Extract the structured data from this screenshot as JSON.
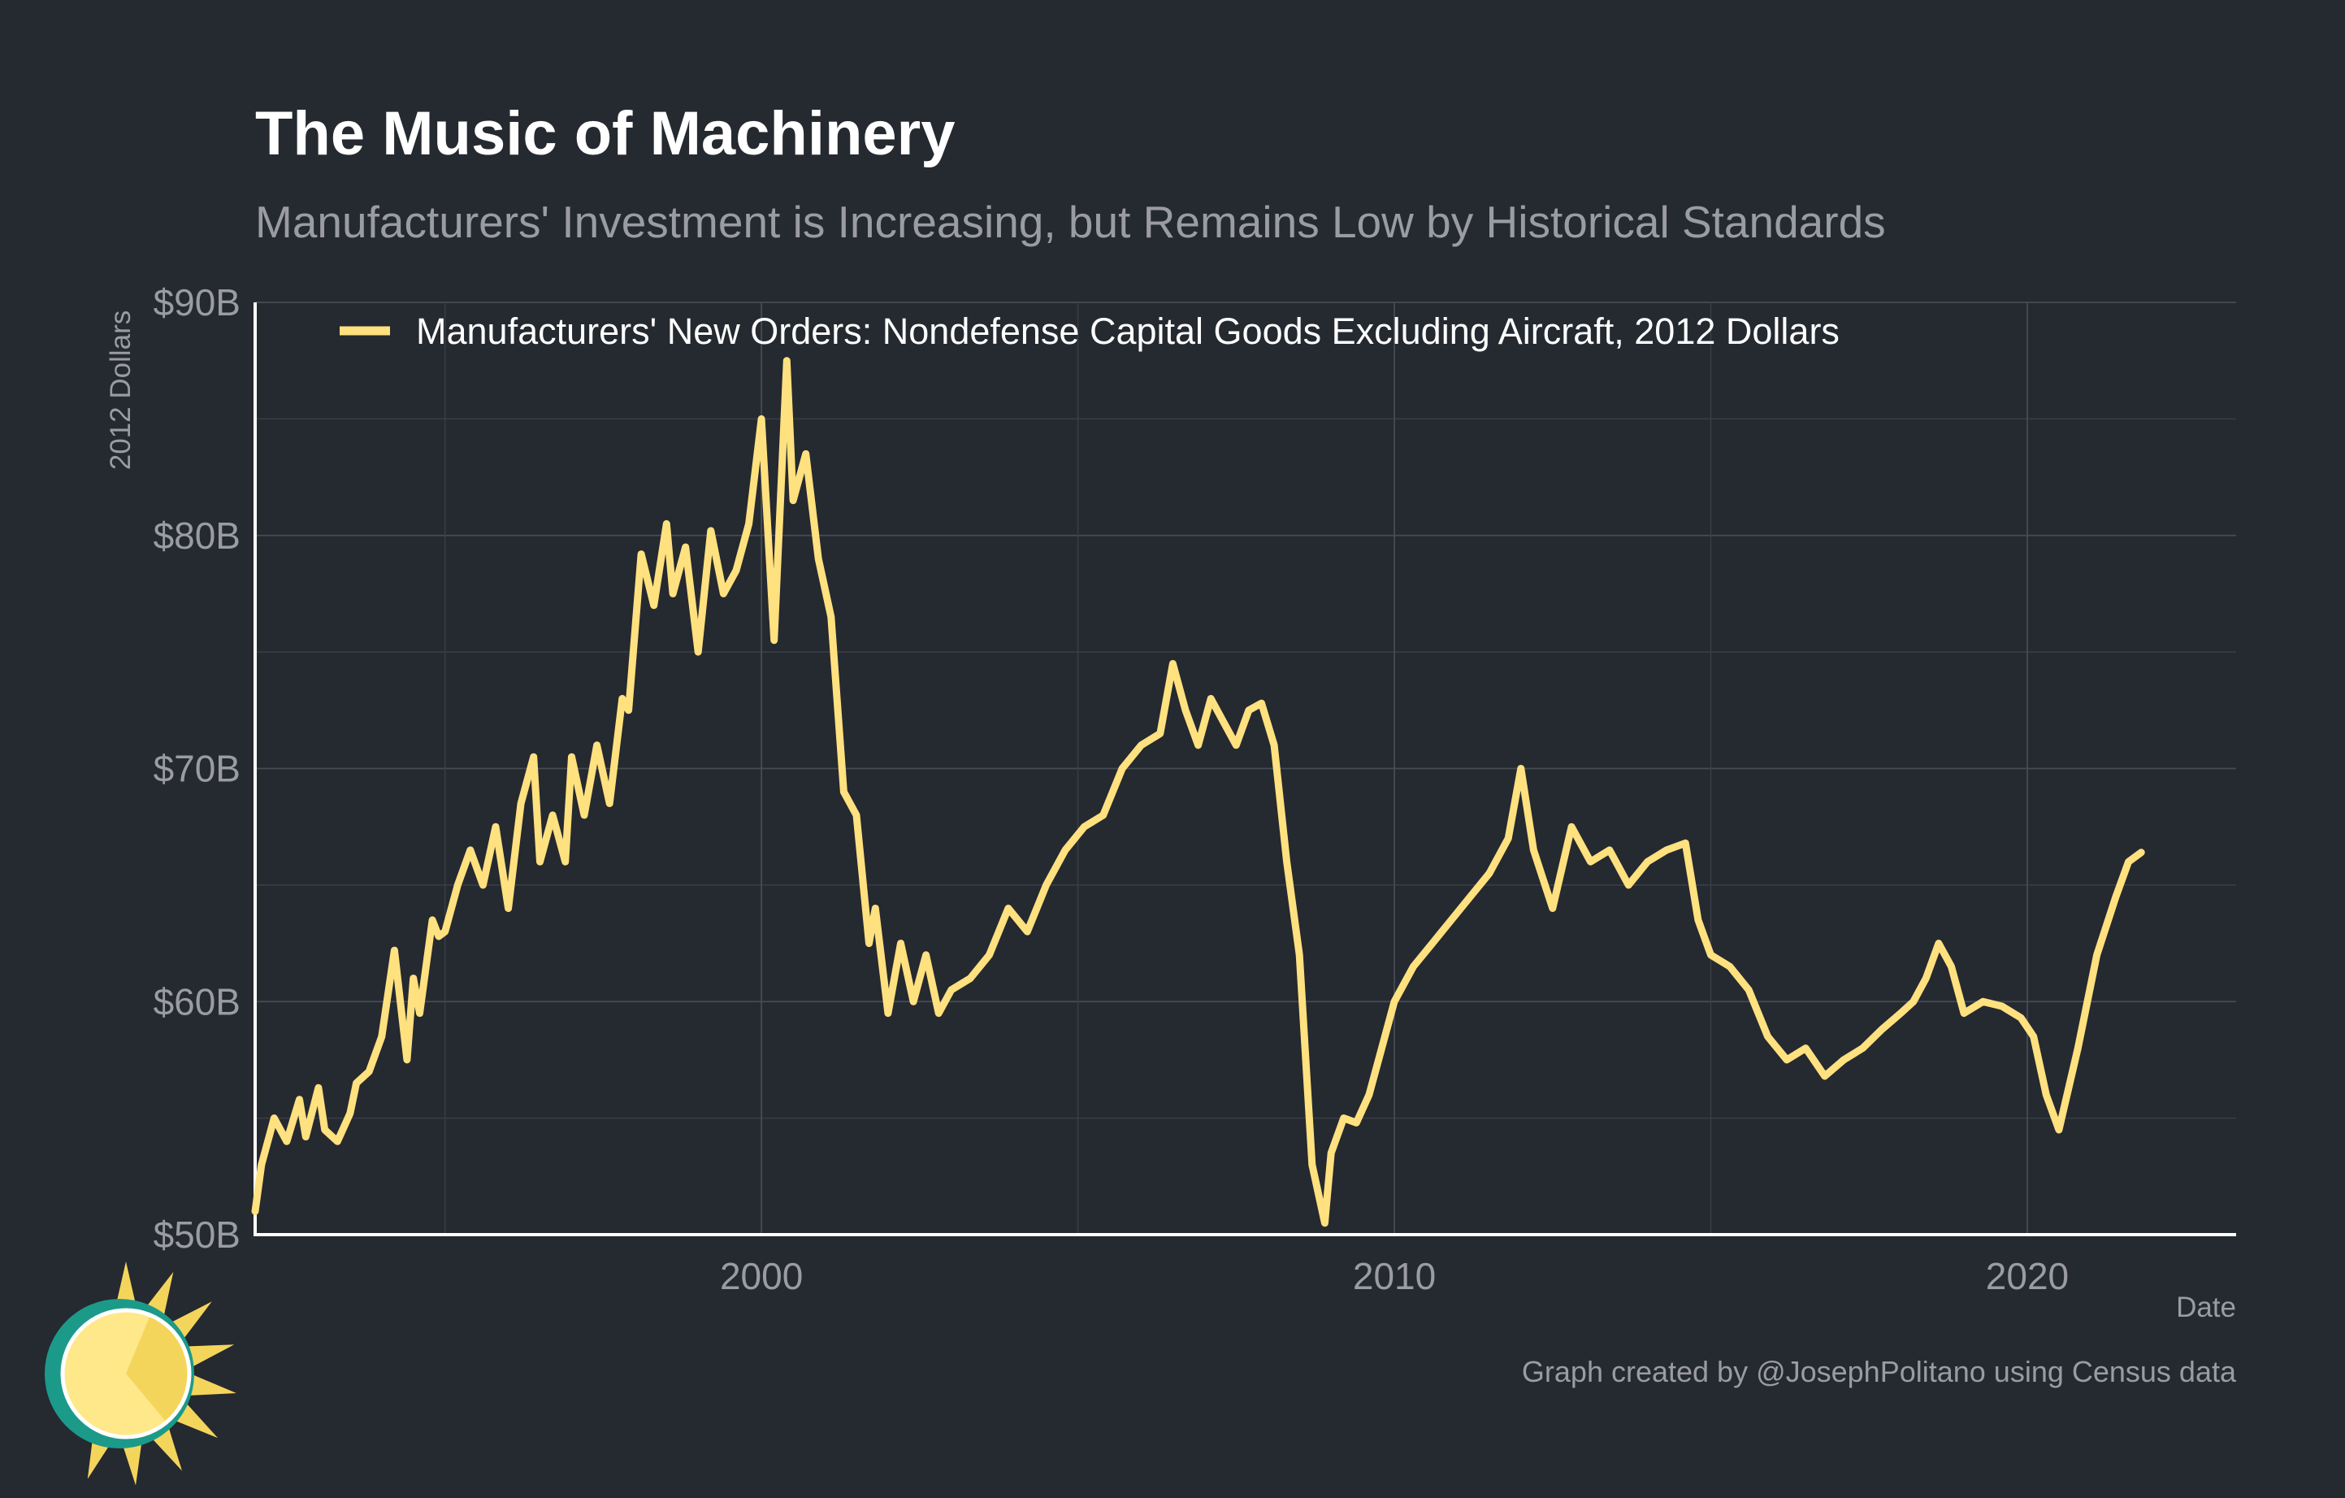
{
  "colors": {
    "background": "#252930",
    "series": "#FFE17F",
    "logo_ring": "#1B9A8A",
    "logo_face": "#FFE88A",
    "logo_rays": "#F4D55B"
  },
  "logo": {
    "icon": "sun-icon"
  },
  "chart_data": {
    "type": "line",
    "title": "The Music of Machinery",
    "subtitle": "Manufacturers' Investment is Increasing, but Remains Low by Historical Standards",
    "xlabel": "Date",
    "ylabel": "2012 Dollars",
    "xlim": [
      1992.0,
      2023.3
    ],
    "ylim": [
      50,
      90
    ],
    "x_ticks": [
      2000,
      2010,
      2020
    ],
    "y_ticks": [
      50,
      60,
      70,
      80,
      90
    ],
    "y_tick_labels": [
      "$50B",
      "$60B",
      "$70B",
      "$80B",
      "$90B"
    ],
    "grid": true,
    "legend_position": "top-left",
    "caption": "Graph created by @JosephPolitano using Census data",
    "series": [
      {
        "name": "Manufacturers' New Orders: Nondefense Capital Goods Excluding Aircraft, 2012 Dollars",
        "x": [
          1992.0,
          1992.1,
          1992.3,
          1992.5,
          1992.7,
          1992.8,
          1993.0,
          1993.1,
          1993.3,
          1993.5,
          1993.6,
          1993.8,
          1994.0,
          1994.2,
          1994.4,
          1994.5,
          1994.6,
          1994.8,
          1994.9,
          1995.0,
          1995.2,
          1995.4,
          1995.6,
          1995.8,
          1996.0,
          1996.2,
          1996.4,
          1996.5,
          1996.7,
          1996.9,
          1997.0,
          1997.2,
          1997.4,
          1997.6,
          1997.8,
          1997.9,
          1998.1,
          1998.3,
          1998.5,
          1998.6,
          1998.8,
          1999.0,
          1999.2,
          1999.4,
          1999.6,
          1999.8,
          2000.0,
          2000.2,
          2000.4,
          2000.5,
          2000.7,
          2000.9,
          2001.1,
          2001.3,
          2001.5,
          2001.7,
          2001.8,
          2002.0,
          2002.2,
          2002.4,
          2002.6,
          2002.8,
          2003.0,
          2003.3,
          2003.6,
          2003.9,
          2004.2,
          2004.5,
          2004.8,
          2005.1,
          2005.4,
          2005.7,
          2006.0,
          2006.3,
          2006.5,
          2006.7,
          2006.9,
          2007.1,
          2007.3,
          2007.5,
          2007.7,
          2007.9,
          2008.1,
          2008.3,
          2008.5,
          2008.7,
          2008.9,
          2009.0,
          2009.2,
          2009.4,
          2009.6,
          2009.8,
          2010.0,
          2010.3,
          2010.6,
          2010.9,
          2011.2,
          2011.5,
          2011.8,
          2012.0,
          2012.2,
          2012.5,
          2012.8,
          2013.1,
          2013.4,
          2013.7,
          2014.0,
          2014.3,
          2014.6,
          2014.8,
          2015.0,
          2015.3,
          2015.6,
          2015.9,
          2016.2,
          2016.5,
          2016.8,
          2017.1,
          2017.4,
          2017.7,
          2018.0,
          2018.2,
          2018.4,
          2018.6,
          2018.8,
          2019.0,
          2019.3,
          2019.6,
          2019.9,
          2020.1,
          2020.3,
          2020.5,
          2020.8,
          2021.1,
          2021.4,
          2021.6,
          2021.8
        ],
        "values": [
          51.0,
          53.0,
          55.0,
          54.0,
          55.8,
          54.2,
          56.3,
          54.5,
          54.0,
          55.2,
          56.5,
          57.0,
          58.5,
          62.2,
          57.5,
          61.0,
          59.5,
          63.5,
          62.8,
          63.0,
          65.0,
          66.5,
          65.0,
          67.5,
          64.0,
          68.5,
          70.5,
          66.0,
          68.0,
          66.0,
          70.5,
          68.0,
          71.0,
          68.5,
          73.0,
          72.5,
          79.2,
          77.0,
          80.5,
          77.5,
          79.5,
          75.0,
          80.2,
          77.5,
          78.5,
          80.5,
          85.0,
          75.5,
          87.5,
          81.5,
          83.5,
          79.0,
          76.5,
          69.0,
          68.0,
          62.5,
          64.0,
          59.5,
          62.5,
          60.0,
          62.0,
          59.5,
          60.5,
          61.0,
          62.0,
          64.0,
          63.0,
          65.0,
          66.5,
          67.5,
          68.0,
          70.0,
          71.0,
          71.5,
          74.5,
          72.5,
          71.0,
          73.0,
          72.0,
          71.0,
          72.5,
          72.8,
          71.0,
          66.0,
          62.0,
          53.0,
          50.5,
          53.5,
          55.0,
          54.8,
          56.0,
          58.0,
          60.0,
          61.5,
          62.5,
          63.5,
          64.5,
          65.5,
          67.0,
          70.0,
          66.5,
          64.0,
          67.5,
          66.0,
          66.5,
          65.0,
          66.0,
          66.5,
          66.8,
          63.5,
          62.0,
          61.5,
          60.5,
          58.5,
          57.5,
          58.0,
          56.8,
          57.5,
          58.0,
          58.8,
          59.5,
          60.0,
          61.0,
          62.5,
          61.5,
          59.5,
          60.0,
          59.8,
          59.3,
          58.5,
          56.0,
          54.5,
          58.0,
          62.0,
          64.5,
          66.0,
          66.4
        ]
      }
    ]
  }
}
